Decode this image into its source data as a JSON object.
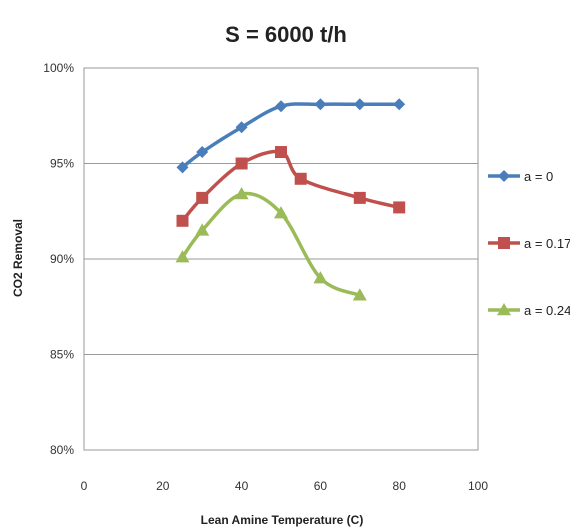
{
  "chart_data": {
    "type": "line",
    "title": "S = 6000 t/h",
    "xlabel": "Lean Amine Temperature (C)",
    "ylabel": "CO2 Removal",
    "xlim": [
      0,
      100
    ],
    "ylim": [
      80,
      100
    ],
    "x_ticks": [
      0,
      20,
      40,
      60,
      80,
      100
    ],
    "y_ticks": [
      80,
      85,
      90,
      95,
      100
    ],
    "y_tick_labels": [
      "80%",
      "85%",
      "90%",
      "95%",
      "100%"
    ],
    "grid": "horizontal",
    "legend_position": "right",
    "series": [
      {
        "name": "a = 0",
        "color": "#4a7ebb",
        "marker": "diamond",
        "x": [
          25,
          30,
          40,
          50,
          60,
          70,
          80
        ],
        "y": [
          94.8,
          95.6,
          96.9,
          98.0,
          98.1,
          98.1,
          98.1
        ]
      },
      {
        "name": "a = 0.17",
        "color": "#c0504d",
        "marker": "square",
        "x": [
          25,
          30,
          40,
          50,
          55,
          70,
          80
        ],
        "y": [
          92.0,
          93.2,
          95.0,
          95.6,
          94.2,
          93.2,
          92.7
        ]
      },
      {
        "name": "a = 0.24",
        "color": "#9bbb59",
        "marker": "triangle",
        "x": [
          25,
          30,
          40,
          50,
          60,
          70
        ],
        "y": [
          90.1,
          91.5,
          93.4,
          92.4,
          89.0,
          88.1
        ]
      }
    ]
  }
}
